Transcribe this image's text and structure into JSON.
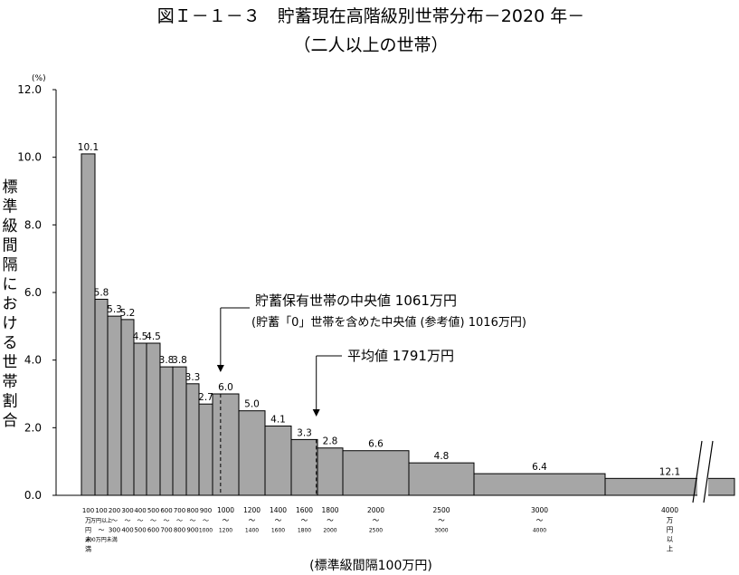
{
  "chart_data": {
    "type": "bar",
    "title": "図Ｉ－１－３　貯蓄現在高階級別世帯分布－2020 年－",
    "subtitle": "（二人以上の世帯）",
    "ylabel": "標準級間隔における世帯割合",
    "yunit": "(%)",
    "xlabel": "(標準級間隔100万円)",
    "ylim": [
      0,
      12
    ],
    "yticks": [
      "0.0",
      "2.0",
      "4.0",
      "6.0",
      "8.0",
      "10.0",
      "12.0"
    ],
    "bar_color": "#a6a6a6",
    "bars": [
      {
        "start": 0,
        "end": 100,
        "value": 10.1,
        "label": "10.1"
      },
      {
        "start": 100,
        "end": 200,
        "value": 5.8,
        "label": "5.8"
      },
      {
        "start": 200,
        "end": 300,
        "value": 5.3,
        "label": "5.3"
      },
      {
        "start": 300,
        "end": 400,
        "value": 5.2,
        "label": "5.2"
      },
      {
        "start": 400,
        "end": 500,
        "value": 4.5,
        "label": "4.5"
      },
      {
        "start": 500,
        "end": 600,
        "value": 4.5,
        "label": "4.5"
      },
      {
        "start": 600,
        "end": 700,
        "value": 3.8,
        "label": "3.8"
      },
      {
        "start": 700,
        "end": 800,
        "value": 3.8,
        "label": "3.8"
      },
      {
        "start": 800,
        "end": 900,
        "value": 3.3,
        "label": "3.3"
      },
      {
        "start": 900,
        "end": 1000,
        "value": 2.7,
        "label": "2.7"
      },
      {
        "start": 1000,
        "end": 1200,
        "value": 3.0,
        "label": "6.0"
      },
      {
        "start": 1200,
        "end": 1400,
        "value": 2.5,
        "label": "5.0"
      },
      {
        "start": 1400,
        "end": 1600,
        "value": 2.05,
        "label": "4.1"
      },
      {
        "start": 1600,
        "end": 1800,
        "value": 1.65,
        "label": "3.3"
      },
      {
        "start": 1800,
        "end": 2000,
        "value": 1.4,
        "label": "2.8"
      },
      {
        "start": 2000,
        "end": 2500,
        "value": 1.32,
        "label": "6.6"
      },
      {
        "start": 2500,
        "end": 3000,
        "value": 0.96,
        "label": "4.8"
      },
      {
        "start": 3000,
        "end": 4000,
        "value": 0.64,
        "label": "6.4"
      },
      {
        "start": 4000,
        "end": null,
        "value": 0.5,
        "label": "12.1"
      }
    ],
    "x_tick_labels": [
      {
        "top": "100",
        "lines": [
          "万",
          "円",
          "未",
          "満"
        ]
      },
      {
        "top": "100",
        "lines": [
          "万円以上",
          "～",
          "200万円未満"
        ]
      },
      {
        "top": "200",
        "lines": [
          "～",
          "300"
        ]
      },
      {
        "top": "300",
        "lines": [
          "～",
          "400"
        ]
      },
      {
        "top": "400",
        "lines": [
          "～",
          "500"
        ]
      },
      {
        "top": "500",
        "lines": [
          "～",
          "600"
        ]
      },
      {
        "top": "600",
        "lines": [
          "～",
          "700"
        ]
      },
      {
        "top": "700",
        "lines": [
          "～",
          "800"
        ]
      },
      {
        "top": "800",
        "lines": [
          "～",
          "900"
        ]
      },
      {
        "top": "900",
        "lines": [
          "～",
          "1000"
        ]
      },
      {
        "top": "1000",
        "lines": [
          "～",
          "1200"
        ]
      },
      {
        "top": "1200",
        "lines": [
          "～",
          "1400"
        ]
      },
      {
        "top": "1400",
        "lines": [
          "～",
          "1600"
        ]
      },
      {
        "top": "1600",
        "lines": [
          "～",
          "1800"
        ]
      },
      {
        "top": "1800",
        "lines": [
          "～",
          "2000"
        ]
      },
      {
        "top": "2000",
        "lines": [
          "～",
          "2500"
        ]
      },
      {
        "top": "2500",
        "lines": [
          "～",
          "3000"
        ]
      },
      {
        "top": "3000",
        "lines": [
          "～",
          "4000"
        ]
      },
      {
        "top": "4000",
        "lines": [
          "万",
          "円",
          "以",
          "上"
        ]
      }
    ],
    "annotations": {
      "median": {
        "value": 1061,
        "line1": "貯蓄保有世帯の中央値 1061万円",
        "line2": "(貯蓄「0」世帯を含めた中央値 (参考値)  1016万円)"
      },
      "mean": {
        "value": 1791,
        "line1": "平均値 1791万円"
      }
    },
    "grid": false,
    "legend": "none"
  }
}
